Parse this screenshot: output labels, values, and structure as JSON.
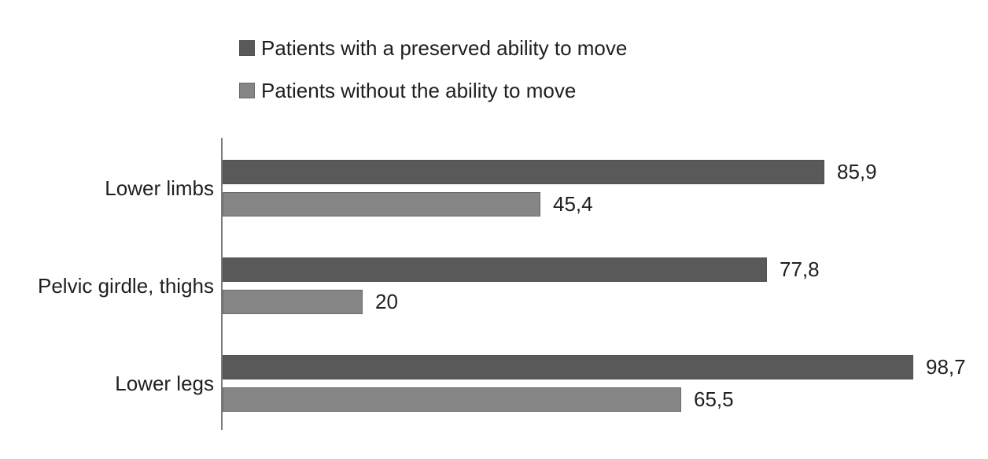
{
  "chart_data": {
    "type": "bar",
    "orientation": "horizontal",
    "title": "",
    "categories": [
      "Lower limbs",
      "Pelvic girdle, thighs",
      "Lower legs"
    ],
    "series": [
      {
        "name": "Patients with a preserved ability to move",
        "color": "#595959",
        "border_color": "#515151",
        "values": [
          85.9,
          77.8,
          98.7
        ],
        "value_labels": [
          "85,9",
          "77,8",
          "98,7"
        ]
      },
      {
        "name": "Patients without the ability to move",
        "color": "#858585",
        "border_color": "#696969",
        "values": [
          45.4,
          20,
          65.5
        ],
        "value_labels": [
          "45,4",
          "20",
          "65,5"
        ]
      }
    ],
    "xlim": [
      0,
      100
    ],
    "value_decimal_separator": ",",
    "legend_position": "top-left",
    "grid": false,
    "x_axis_labels_visible": false,
    "axis_color": "#7c7c7c",
    "text_color": "#1f1f1f",
    "background_color": "#ffffff"
  }
}
